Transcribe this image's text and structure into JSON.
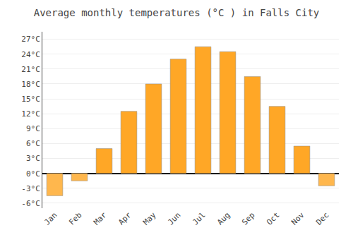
{
  "chart_data": {
    "type": "bar",
    "title": "Average monthly temperatures (°C ) in Falls City",
    "categories": [
      "Jan",
      "Feb",
      "Mar",
      "Apr",
      "May",
      "Jun",
      "Jul",
      "Aug",
      "Sep",
      "Oct",
      "Nov",
      "Dec"
    ],
    "values": [
      -4.5,
      -1.5,
      5.0,
      12.5,
      18.0,
      23.0,
      25.5,
      24.5,
      19.5,
      13.5,
      5.5,
      -2.5
    ],
    "colors": [
      "#FFB74D",
      "#FFB74D",
      "#FFA726",
      "#FFA726",
      "#FFA726",
      "#FFA726",
      "#FFA726",
      "#FFA726",
      "#FFA726",
      "#FFA726",
      "#FFA726",
      "#FFB74D"
    ],
    "ylim": [
      -7.0,
      28.5
    ],
    "yticks": [
      {
        "value": -6,
        "label": "-6°C"
      },
      {
        "value": -3,
        "label": "-3°C"
      },
      {
        "value": 0,
        "label": "0°C"
      },
      {
        "value": 3,
        "label": "3°C"
      },
      {
        "value": 6,
        "label": "6°C"
      },
      {
        "value": 9,
        "label": "9°C"
      },
      {
        "value": 12,
        "label": "12°C"
      },
      {
        "value": 15,
        "label": "15°C"
      },
      {
        "value": 18,
        "label": "18°C"
      },
      {
        "value": 21,
        "label": "21°C"
      },
      {
        "value": 24,
        "label": "24°C"
      },
      {
        "value": 27,
        "label": "27°C"
      }
    ],
    "grid": true
  }
}
